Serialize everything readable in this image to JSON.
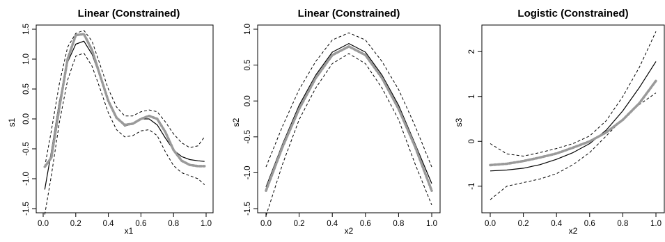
{
  "figure": {
    "panels": [
      {
        "title": "Linear (Constrained)",
        "xlabel": "x1",
        "ylabel": "s1"
      },
      {
        "title": "Linear (Constrained)",
        "xlabel": "x2",
        "ylabel": "s2"
      },
      {
        "title": "Logistic (Constrained)",
        "xlabel": "x2",
        "ylabel": "s3"
      }
    ]
  },
  "chart_data": [
    {
      "type": "line",
      "title": "Linear (Constrained)",
      "xlabel": "x1",
      "ylabel": "s1",
      "xlim": [
        0.0,
        1.0
      ],
      "ylim": [
        -1.5,
        1.5
      ],
      "xticks": [
        "0.0",
        "0.2",
        "0.4",
        "0.6",
        "0.8",
        "1.0"
      ],
      "yticks": [
        "-1.5",
        "-1.0",
        "-0.5",
        "0.0",
        "0.5",
        "1.0",
        "1.5"
      ],
      "x": [
        0.01,
        0.05,
        0.1,
        0.15,
        0.2,
        0.25,
        0.3,
        0.35,
        0.4,
        0.45,
        0.5,
        0.55,
        0.6,
        0.65,
        0.7,
        0.75,
        0.8,
        0.85,
        0.9,
        0.95,
        0.99
      ],
      "series": [
        {
          "style": "solid-black",
          "values": [
            -1.18,
            -0.55,
            0.3,
            0.95,
            1.25,
            1.3,
            1.08,
            0.7,
            0.3,
            0.02,
            -0.12,
            -0.08,
            0.0,
            0.0,
            -0.1,
            -0.32,
            -0.52,
            -0.63,
            -0.68,
            -0.7,
            -0.71
          ]
        },
        {
          "style": "dashed-black-upper",
          "values": [
            -0.8,
            -0.2,
            0.6,
            1.2,
            1.43,
            1.48,
            1.3,
            0.9,
            0.5,
            0.2,
            0.05,
            0.05,
            0.12,
            0.15,
            0.12,
            -0.05,
            -0.25,
            -0.4,
            -0.48,
            -0.45,
            -0.3
          ]
        },
        {
          "style": "dashed-black-lower",
          "values": [
            -1.6,
            -0.95,
            -0.05,
            0.65,
            1.05,
            1.1,
            0.88,
            0.5,
            0.1,
            -0.18,
            -0.3,
            -0.28,
            -0.2,
            -0.18,
            -0.28,
            -0.55,
            -0.78,
            -0.9,
            -0.95,
            -1.0,
            -1.1
          ]
        },
        {
          "style": "dotted-gray-thick",
          "values": [
            -0.8,
            -0.65,
            0.2,
            1.0,
            1.4,
            1.42,
            1.15,
            0.72,
            0.3,
            0.02,
            -0.1,
            -0.08,
            0.0,
            0.05,
            0.0,
            -0.22,
            -0.52,
            -0.7,
            -0.77,
            -0.79,
            -0.79
          ]
        }
      ]
    },
    {
      "type": "line",
      "title": "Linear (Constrained)",
      "xlabel": "x2",
      "ylabel": "s2",
      "xlim": [
        0.0,
        1.0
      ],
      "ylim": [
        -1.5,
        1.0
      ],
      "xticks": [
        "0.0",
        "0.2",
        "0.4",
        "0.6",
        "0.8",
        "1.0"
      ],
      "yticks": [
        "-1.5",
        "-1.0",
        "-0.5",
        "0.0",
        "0.5",
        "1.0"
      ],
      "x": [
        0.0,
        0.1,
        0.2,
        0.3,
        0.4,
        0.5,
        0.6,
        0.7,
        0.8,
        0.9,
        1.0
      ],
      "series": [
        {
          "style": "solid-black",
          "values": [
            -1.2,
            -0.6,
            -0.06,
            0.36,
            0.68,
            0.8,
            0.68,
            0.36,
            -0.06,
            -0.6,
            -1.15
          ]
        },
        {
          "style": "dashed-black-upper",
          "values": [
            -0.92,
            -0.35,
            0.16,
            0.55,
            0.85,
            0.95,
            0.85,
            0.55,
            0.16,
            -0.35,
            -0.92
          ]
        },
        {
          "style": "dashed-black-lower",
          "values": [
            -1.6,
            -0.88,
            -0.26,
            0.18,
            0.52,
            0.66,
            0.52,
            0.18,
            -0.26,
            -0.88,
            -1.45
          ]
        },
        {
          "style": "dotted-gray-thick",
          "values": [
            -1.25,
            -0.64,
            -0.11,
            0.32,
            0.64,
            0.76,
            0.64,
            0.32,
            -0.11,
            -0.64,
            -1.25
          ]
        }
      ]
    },
    {
      "type": "line",
      "title": "Logistic (Constrained)",
      "xlabel": "x2",
      "ylabel": "s3",
      "xlim": [
        0.0,
        1.0
      ],
      "ylim": [
        -1.5,
        2.5
      ],
      "xticks": [
        "0.0",
        "0.2",
        "0.4",
        "0.6",
        "0.8",
        "1.0"
      ],
      "yticks": [
        "-1",
        "0",
        "1",
        "2"
      ],
      "x": [
        0.0,
        0.1,
        0.2,
        0.3,
        0.4,
        0.5,
        0.6,
        0.7,
        0.8,
        0.9,
        1.0
      ],
      "series": [
        {
          "style": "solid-black",
          "values": [
            -0.66,
            -0.64,
            -0.6,
            -0.52,
            -0.4,
            -0.25,
            -0.05,
            0.25,
            0.68,
            1.2,
            1.78
          ]
        },
        {
          "style": "dashed-black-upper",
          "values": [
            -0.05,
            -0.28,
            -0.33,
            -0.25,
            -0.16,
            -0.05,
            0.12,
            0.46,
            1.0,
            1.65,
            2.45
          ]
        },
        {
          "style": "dashed-black-lower",
          "values": [
            -1.3,
            -1.0,
            -0.92,
            -0.84,
            -0.72,
            -0.52,
            -0.25,
            0.12,
            0.5,
            0.82,
            1.08
          ]
        },
        {
          "style": "dotted-gray-thick",
          "values": [
            -0.53,
            -0.5,
            -0.44,
            -0.36,
            -0.27,
            -0.14,
            0.0,
            0.2,
            0.48,
            0.85,
            1.35
          ]
        }
      ]
    }
  ]
}
